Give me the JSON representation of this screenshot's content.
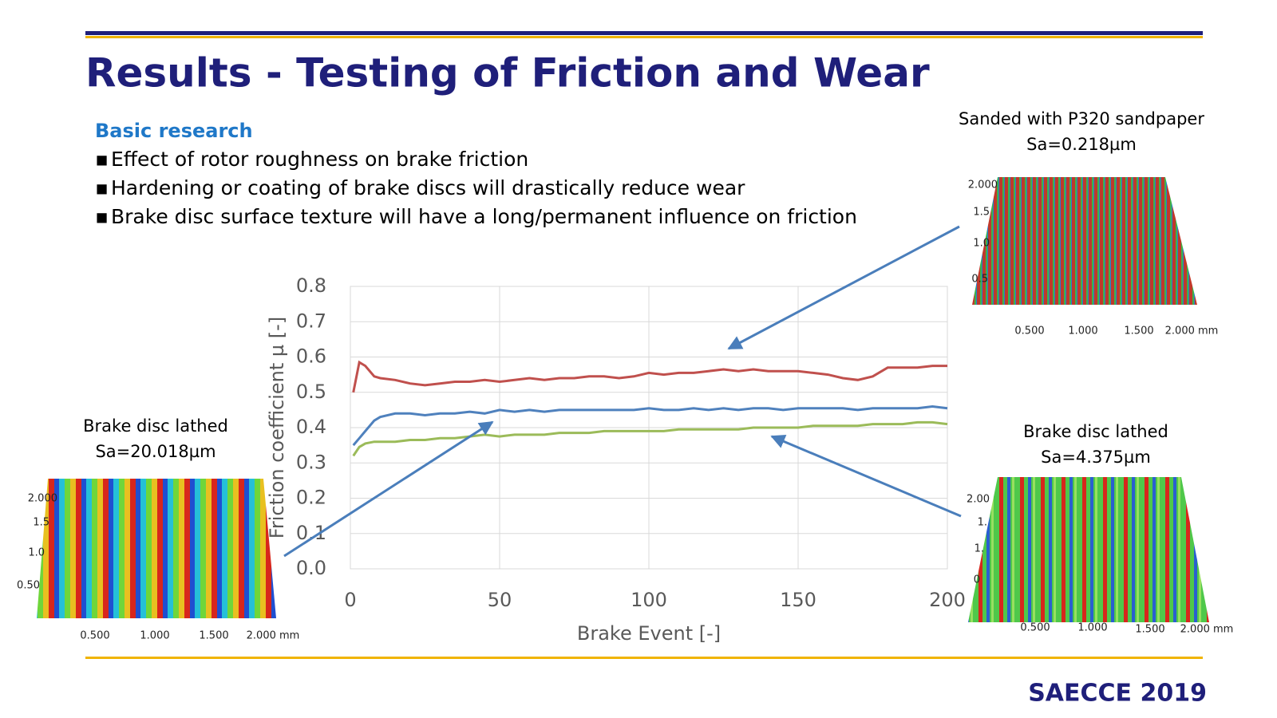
{
  "header": {
    "title": "Results - Testing of Friction and Wear"
  },
  "body": {
    "heading": "Basic research",
    "bullets": [
      "Effect of rotor roughness on brake friction",
      "Hardening or coating of brake discs will drastically reduce wear",
      "Brake disc surface texture will have a long/permanent influence on friction"
    ]
  },
  "insets": [
    {
      "caption": [
        "Sanded with P320 sandpaper",
        "Sa=0.218µm"
      ],
      "y_labels": [
        "2.000",
        "1.5",
        "1.0",
        "0.5"
      ],
      "x_labels": [
        "0.500",
        "1.000",
        "1.500",
        "2.000 mm"
      ]
    },
    {
      "caption": [
        "Brake disc lathed",
        "Sa=20.018µm"
      ],
      "y_labels": [
        "2.000",
        "1.5",
        "1.0",
        "0.50"
      ],
      "x_labels": [
        "0.500",
        "1.000",
        "1.500",
        "2.000 mm"
      ]
    },
    {
      "caption": [
        "Brake disc lathed",
        "Sa=4.375µm"
      ],
      "y_labels": [
        "2.00",
        "1.",
        "1.",
        "0"
      ],
      "x_labels": [
        "0.500",
        "1.000",
        "1.500",
        "2.000 mm"
      ]
    }
  ],
  "footer": {
    "text": "SAECCE 2019"
  },
  "chart_data": {
    "type": "line",
    "x_label": "Brake Event [-]",
    "y_label": "Friction coefficient µ [-]",
    "x": [
      1,
      3,
      5,
      8,
      10,
      15,
      20,
      25,
      30,
      35,
      40,
      45,
      50,
      55,
      60,
      65,
      70,
      75,
      80,
      85,
      90,
      95,
      100,
      105,
      110,
      115,
      120,
      125,
      130,
      135,
      140,
      145,
      150,
      155,
      160,
      165,
      170,
      175,
      180,
      185,
      190,
      195,
      200
    ],
    "series": [
      {
        "color": "#c0504d",
        "values": [
          0.5,
          0.585,
          0.575,
          0.545,
          0.54,
          0.535,
          0.525,
          0.52,
          0.525,
          0.53,
          0.53,
          0.535,
          0.53,
          0.535,
          0.54,
          0.535,
          0.54,
          0.54,
          0.545,
          0.545,
          0.54,
          0.545,
          0.555,
          0.55,
          0.555,
          0.555,
          0.56,
          0.565,
          0.56,
          0.565,
          0.56,
          0.56,
          0.56,
          0.555,
          0.55,
          0.54,
          0.535,
          0.545,
          0.57,
          0.57,
          0.57,
          0.575,
          0.575
        ]
      },
      {
        "color": "#4f81bd",
        "values": [
          0.35,
          0.37,
          0.39,
          0.42,
          0.43,
          0.44,
          0.44,
          0.435,
          0.44,
          0.44,
          0.445,
          0.44,
          0.45,
          0.445,
          0.45,
          0.445,
          0.45,
          0.45,
          0.45,
          0.45,
          0.45,
          0.45,
          0.455,
          0.45,
          0.45,
          0.455,
          0.45,
          0.455,
          0.45,
          0.455,
          0.455,
          0.45,
          0.455,
          0.455,
          0.455,
          0.455,
          0.45,
          0.455,
          0.455,
          0.455,
          0.455,
          0.46,
          0.455
        ]
      },
      {
        "color": "#9bbb59",
        "values": [
          0.32,
          0.345,
          0.355,
          0.36,
          0.36,
          0.36,
          0.365,
          0.365,
          0.37,
          0.37,
          0.375,
          0.38,
          0.375,
          0.38,
          0.38,
          0.38,
          0.385,
          0.385,
          0.385,
          0.39,
          0.39,
          0.39,
          0.39,
          0.39,
          0.395,
          0.395,
          0.395,
          0.395,
          0.395,
          0.4,
          0.4,
          0.4,
          0.4,
          0.405,
          0.405,
          0.405,
          0.405,
          0.41,
          0.41,
          0.41,
          0.415,
          0.415,
          0.41
        ]
      }
    ],
    "xlim": [
      0,
      200
    ],
    "xticks": [
      0,
      50,
      100,
      150,
      200
    ],
    "ylim": [
      0,
      0.8
    ],
    "yticks": [
      {
        "value": 0,
        "label": "0.0"
      },
      0.1,
      0.2,
      0.3,
      0.4,
      0.5,
      0.6,
      0.7,
      0.8
    ],
    "grid": true
  }
}
